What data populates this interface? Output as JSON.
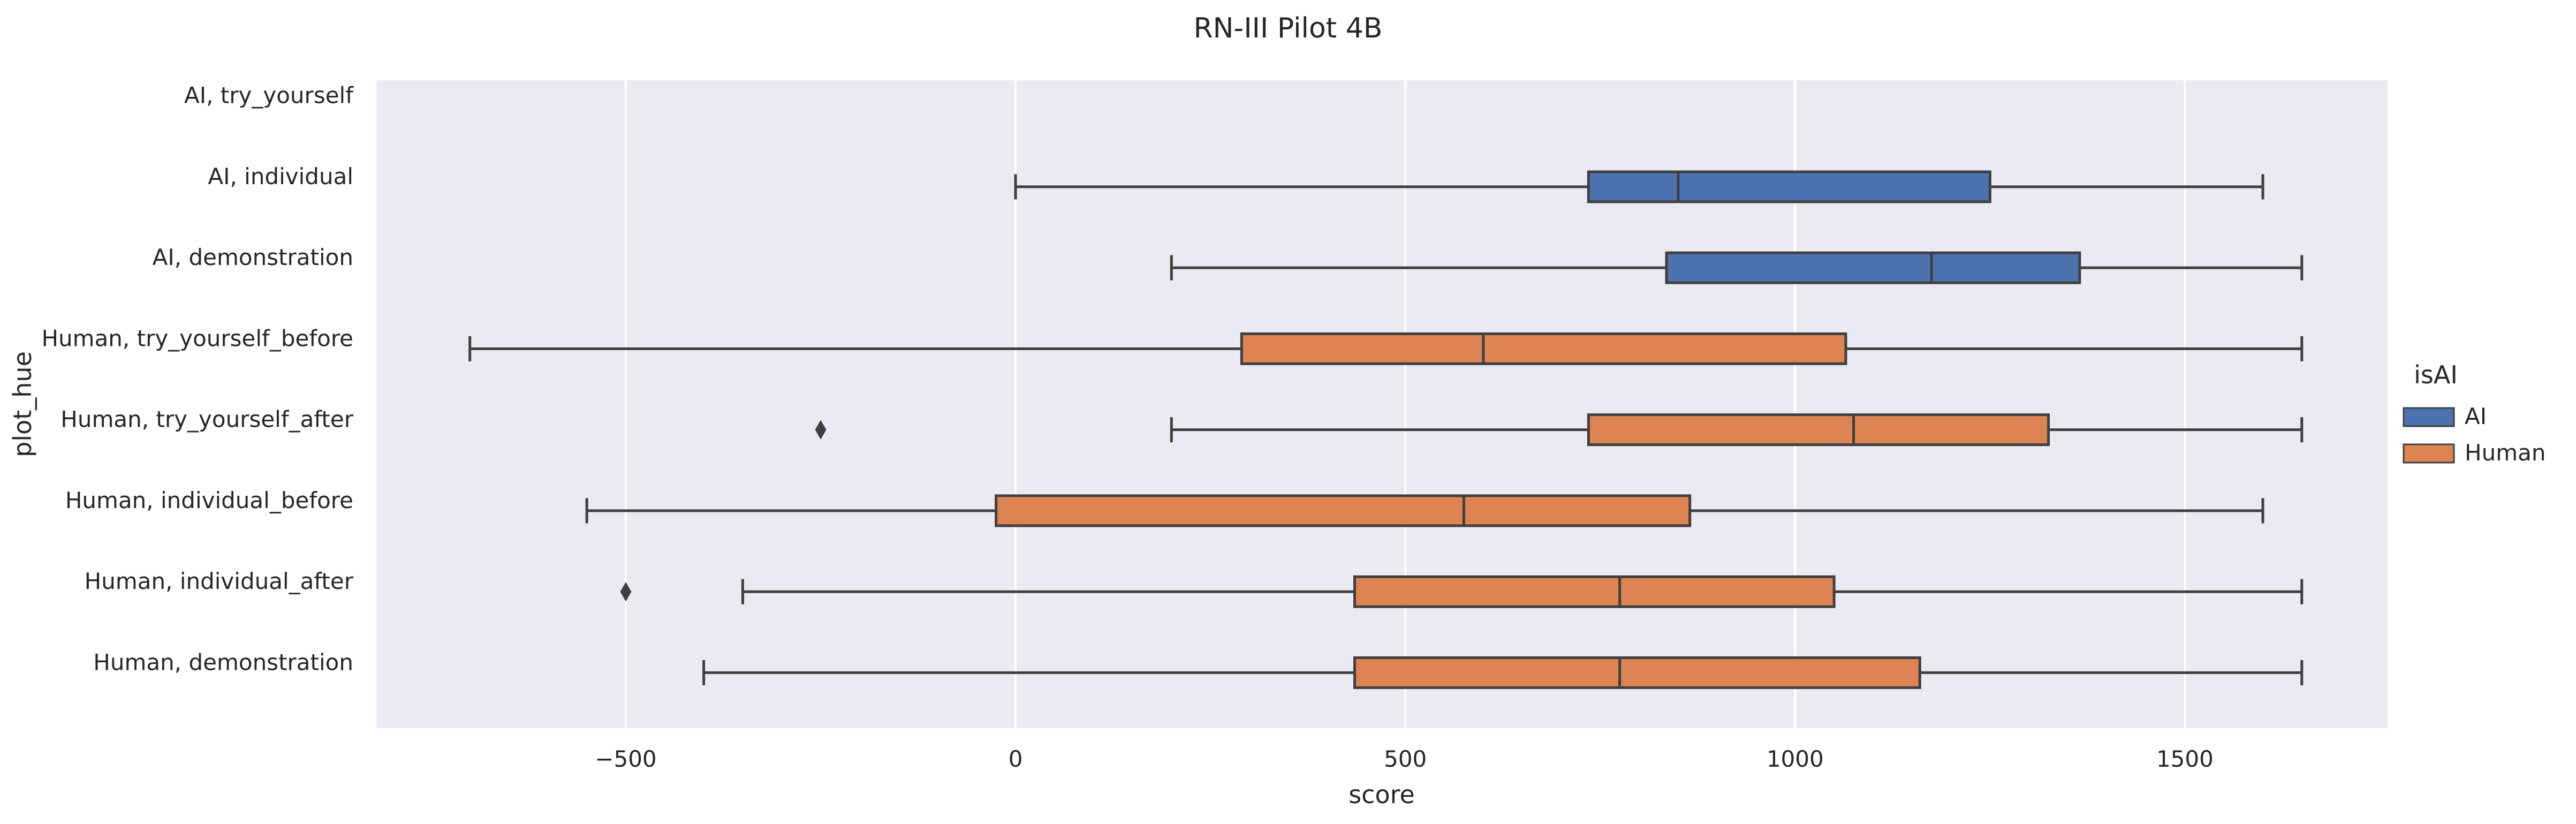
{
  "chart_data": {
    "type": "boxplot",
    "orientation": "horizontal",
    "title": "RN-III Pilot 4B",
    "xlabel": "score",
    "ylabel": "plot_hue",
    "xlim": [
      -820,
      1760
    ],
    "xticks": [
      -500,
      0,
      500,
      1000,
      1500
    ],
    "xtick_labels": [
      "−500",
      "0",
      "500",
      "1000",
      "1500"
    ],
    "grid": true,
    "legend": {
      "title": "isAI",
      "placement": "right",
      "entries": [
        {
          "label": "AI",
          "color": "#4c72b0"
        },
        {
          "label": "Human",
          "color": "#dd8452"
        }
      ]
    },
    "categories": [
      "AI, try_yourself",
      "AI, individual",
      "AI, demonstration",
      "Human, try_yourself_before",
      "Human, try_yourself_after",
      "Human, individual_before",
      "Human, individual_after",
      "Human, demonstration"
    ],
    "boxes": [
      null,
      {
        "group": "AI",
        "whisker_low": 0,
        "q1": 735,
        "median": 850,
        "q3": 1250,
        "whisker_high": 1600,
        "outliers": []
      },
      {
        "group": "AI",
        "whisker_low": 200,
        "q1": 835,
        "median": 1175,
        "q3": 1365,
        "whisker_high": 1650,
        "outliers": []
      },
      {
        "group": "Human",
        "whisker_low": -700,
        "q1": 290,
        "median": 600,
        "q3": 1065,
        "whisker_high": 1650,
        "outliers": []
      },
      {
        "group": "Human",
        "whisker_low": 200,
        "q1": 735,
        "median": 1075,
        "q3": 1325,
        "whisker_high": 1650,
        "outliers": [
          -250
        ]
      },
      {
        "group": "Human",
        "whisker_low": -550,
        "q1": -25,
        "median": 575,
        "q3": 865,
        "whisker_high": 1600,
        "outliers": []
      },
      {
        "group": "Human",
        "whisker_low": -350,
        "q1": 435,
        "median": 775,
        "q3": 1050,
        "whisker_high": 1650,
        "outliers": [
          -500
        ]
      },
      {
        "group": "Human",
        "whisker_low": -400,
        "q1": 435,
        "median": 775,
        "q3": 1160,
        "whisker_high": 1650,
        "outliers": []
      }
    ],
    "colors": {
      "AI": "#4c72b0",
      "Human": "#dd8452",
      "line": "#3f3f3f",
      "background": "#eaeaf2",
      "grid": "#ffffff"
    }
  }
}
